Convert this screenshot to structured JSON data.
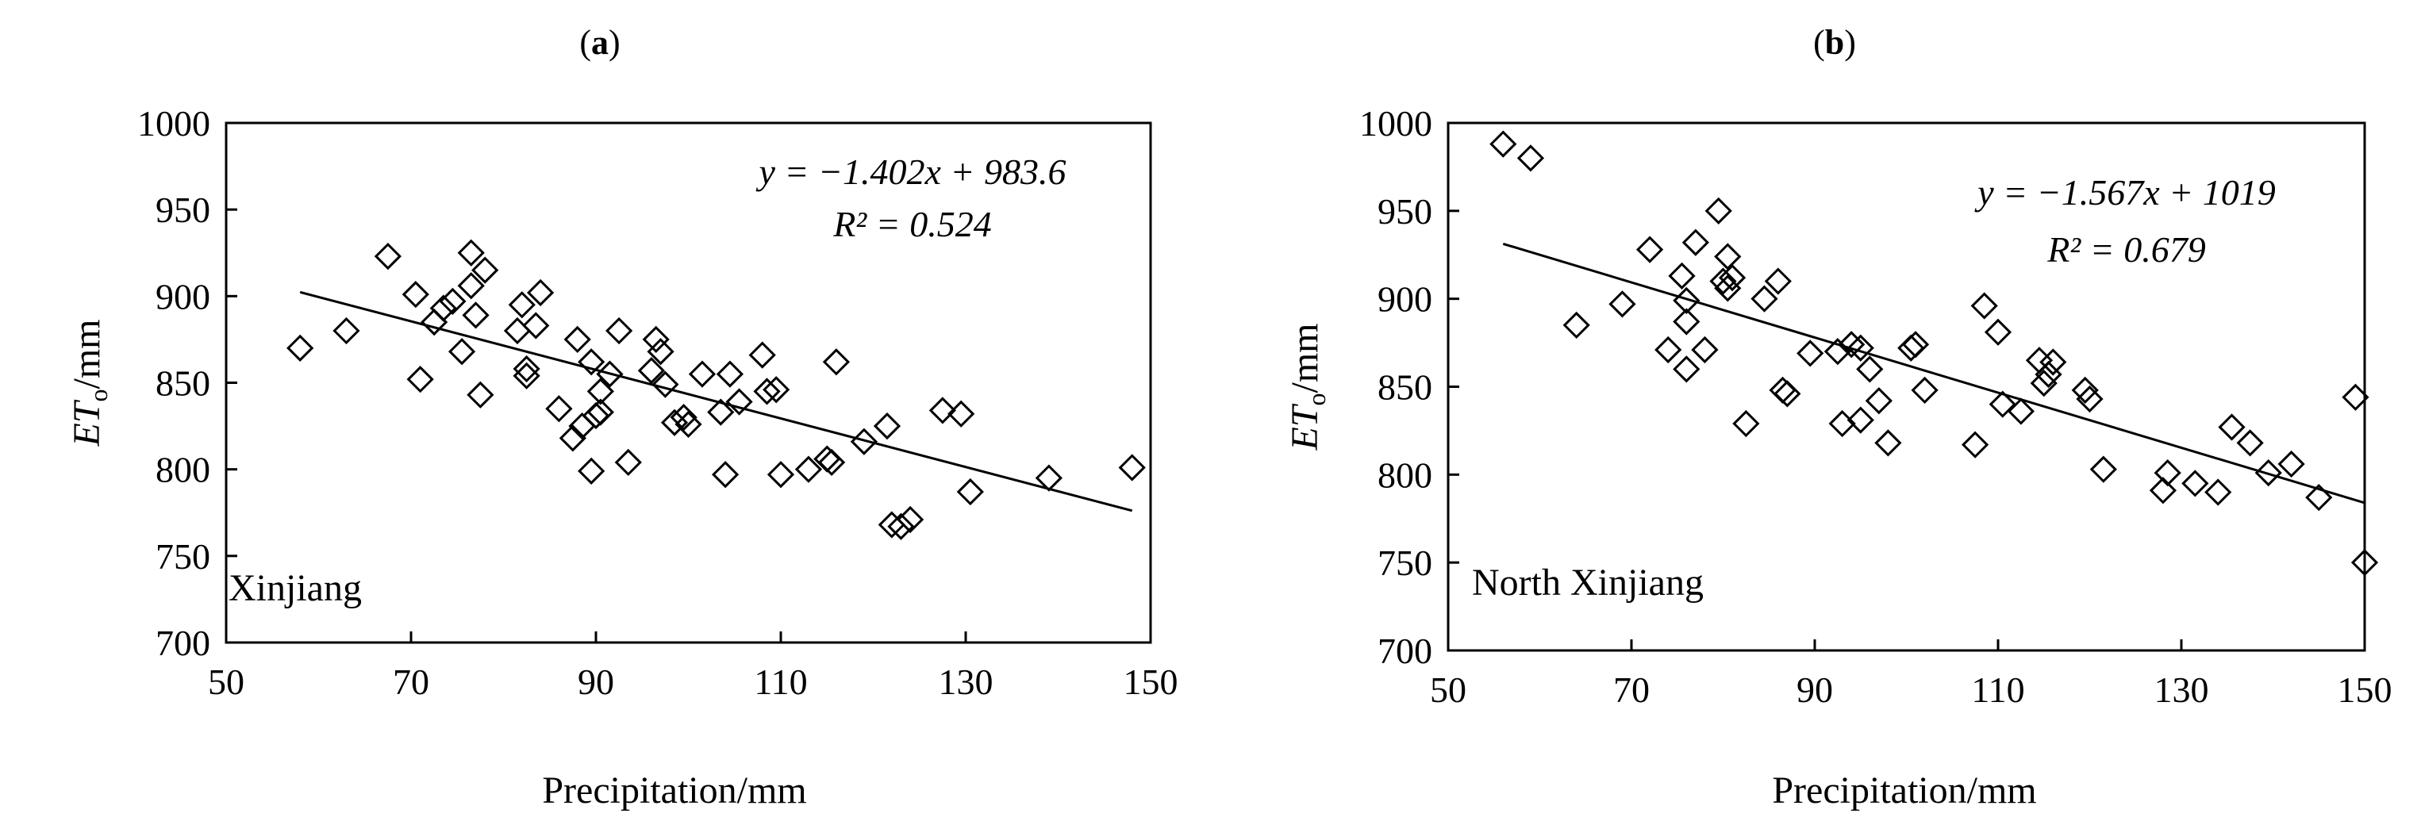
{
  "chart_data": [
    {
      "type": "scatter",
      "panel_label": "a",
      "region": "Xinjiang",
      "xlabel": "Precipitation/mm",
      "ylabel_main": "ET",
      "ylabel_sub": "o",
      "ylabel_unit": "/mm",
      "xlim": [
        50,
        150
      ],
      "ylim": [
        700,
        1000
      ],
      "x_ticks": [
        50,
        70,
        90,
        110,
        130,
        150
      ],
      "y_ticks": [
        700,
        750,
        800,
        850,
        900,
        950,
        1000
      ],
      "equation": "y = −1.402x + 983.6",
      "r2": "R² = 0.524",
      "trendline": {
        "slope": -1.402,
        "intercept": 983.6,
        "x_range": [
          58,
          148
        ]
      },
      "points": [
        [
          58,
          870
        ],
        [
          63,
          880
        ],
        [
          67.5,
          923
        ],
        [
          70.5,
          901
        ],
        [
          71,
          852
        ],
        [
          72.5,
          885
        ],
        [
          73.5,
          893
        ],
        [
          74.5,
          897
        ],
        [
          75.5,
          868
        ],
        [
          76.5,
          906
        ],
        [
          76.5,
          925
        ],
        [
          77.5,
          843
        ],
        [
          78,
          915
        ],
        [
          77,
          889
        ],
        [
          81.5,
          880
        ],
        [
          82,
          895
        ],
        [
          82.5,
          858
        ],
        [
          82.5,
          854
        ],
        [
          83.5,
          883
        ],
        [
          84,
          902
        ],
        [
          86,
          835
        ],
        [
          87.5,
          818
        ],
        [
          88,
          875
        ],
        [
          88.5,
          825
        ],
        [
          89.5,
          799
        ],
        [
          89.5,
          862
        ],
        [
          90,
          831
        ],
        [
          90.5,
          845
        ],
        [
          90.5,
          833
        ],
        [
          91.5,
          855
        ],
        [
          92.5,
          880
        ],
        [
          93.5,
          804
        ],
        [
          96,
          857
        ],
        [
          96.5,
          875
        ],
        [
          97,
          868
        ],
        [
          97.5,
          849
        ],
        [
          98.5,
          827
        ],
        [
          99.5,
          830
        ],
        [
          100,
          826
        ],
        [
          101.5,
          855
        ],
        [
          103.5,
          833
        ],
        [
          104,
          797
        ],
        [
          104.5,
          855
        ],
        [
          105.5,
          839
        ],
        [
          108,
          866
        ],
        [
          108.5,
          845
        ],
        [
          109.5,
          846
        ],
        [
          110,
          797
        ],
        [
          113,
          800
        ],
        [
          115,
          806
        ],
        [
          115.5,
          804
        ],
        [
          116,
          862
        ],
        [
          119,
          816
        ],
        [
          121.5,
          825
        ],
        [
          122,
          768
        ],
        [
          123,
          767
        ],
        [
          124,
          771
        ],
        [
          127.5,
          834
        ],
        [
          129.5,
          832
        ],
        [
          130.5,
          787
        ],
        [
          139,
          795
        ],
        [
          148,
          801
        ]
      ]
    },
    {
      "type": "scatter",
      "panel_label": "b",
      "region": "North Xinjiang",
      "xlabel": "Precipitation/mm",
      "ylabel_main": "ET",
      "ylabel_sub": "o",
      "ylabel_unit": "/mm",
      "xlim": [
        50,
        150
      ],
      "ylim": [
        700,
        1000
      ],
      "x_ticks": [
        50,
        70,
        90,
        110,
        130,
        150
      ],
      "y_ticks": [
        700,
        750,
        800,
        850,
        900,
        950,
        1000
      ],
      "equation": "y = −1.567x + 1019",
      "r2": "R² = 0.679",
      "trendline": {
        "slope": -1.567,
        "intercept": 1019,
        "x_range": [
          56,
          150
        ]
      },
      "points": [
        [
          56,
          988
        ],
        [
          59,
          980
        ],
        [
          64,
          885
        ],
        [
          69,
          897
        ],
        [
          72,
          928
        ],
        [
          74,
          871
        ],
        [
          75.5,
          913
        ],
        [
          76,
          899
        ],
        [
          76,
          887
        ],
        [
          76,
          860
        ],
        [
          77,
          932
        ],
        [
          78,
          871
        ],
        [
          79.5,
          950
        ],
        [
          80,
          910
        ],
        [
          80.5,
          924
        ],
        [
          80.5,
          906
        ],
        [
          81,
          912
        ],
        [
          82.5,
          829
        ],
        [
          84.5,
          900
        ],
        [
          86,
          910
        ],
        [
          86.5,
          848
        ],
        [
          87,
          846
        ],
        [
          89.5,
          869
        ],
        [
          92.5,
          870
        ],
        [
          93,
          829
        ],
        [
          94,
          874
        ],
        [
          95,
          872
        ],
        [
          95,
          831
        ],
        [
          96,
          860
        ],
        [
          97,
          842
        ],
        [
          98,
          818
        ],
        [
          100.5,
          872
        ],
        [
          101,
          874
        ],
        [
          102,
          848
        ],
        [
          107.5,
          817
        ],
        [
          108.5,
          896
        ],
        [
          110,
          881
        ],
        [
          110.5,
          840
        ],
        [
          112.5,
          836
        ],
        [
          114.5,
          865
        ],
        [
          115,
          852
        ],
        [
          115.5,
          857
        ],
        [
          116,
          864
        ],
        [
          119.5,
          848
        ],
        [
          120,
          843
        ],
        [
          121.5,
          803
        ],
        [
          128,
          791
        ],
        [
          128.5,
          801
        ],
        [
          131.5,
          795
        ],
        [
          134,
          790
        ],
        [
          135.5,
          827
        ],
        [
          137.5,
          818
        ],
        [
          139.5,
          801
        ],
        [
          142,
          806
        ],
        [
          145,
          787
        ],
        [
          149,
          844
        ],
        [
          150,
          750
        ]
      ]
    }
  ]
}
